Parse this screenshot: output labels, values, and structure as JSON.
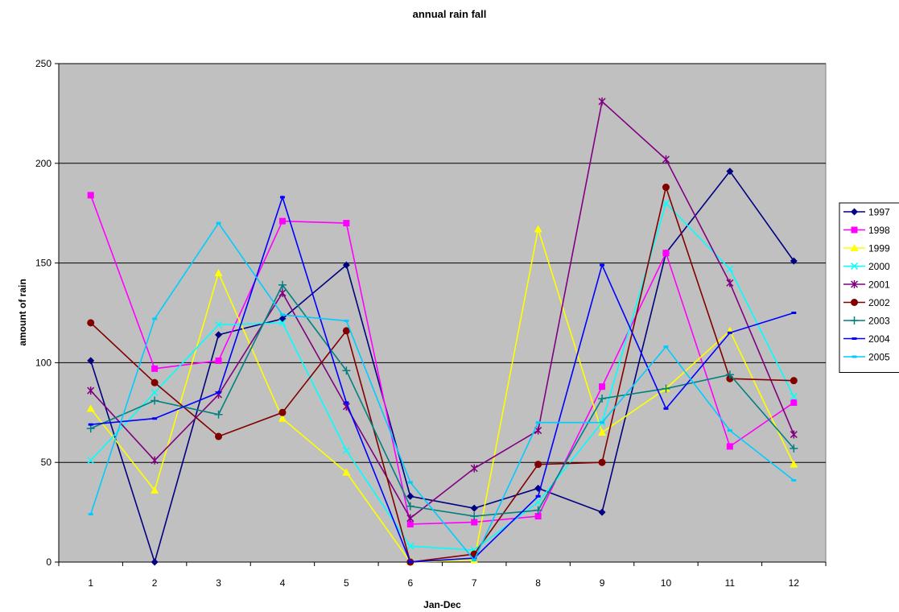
{
  "chart_data": {
    "type": "line",
    "title": "annual rain fall",
    "xlabel": "Jan-Dec",
    "ylabel": "amount of rain",
    "categories": [
      "1",
      "2",
      "3",
      "4",
      "5",
      "6",
      "7",
      "8",
      "9",
      "10",
      "11",
      "12"
    ],
    "ylim": [
      0,
      250
    ],
    "yticks": [
      0,
      50,
      100,
      150,
      200,
      250
    ],
    "grid": "horizontal",
    "plot_background": "#c0c0c0",
    "legend_position": "right",
    "series": [
      {
        "name": "1997",
        "color": "#000080",
        "marker": "diamond",
        "values": [
          101,
          0,
          114,
          122,
          149,
          33,
          27,
          37,
          25,
          155,
          196,
          151
        ]
      },
      {
        "name": "1998",
        "color": "#ff00ff",
        "marker": "square",
        "values": [
          184,
          97,
          101,
          171,
          170,
          19,
          20,
          23,
          88,
          155,
          58,
          80
        ]
      },
      {
        "name": "1999",
        "color": "#ffff00",
        "marker": "triangle",
        "values": [
          77,
          36,
          145,
          72,
          45,
          0,
          1,
          167,
          65,
          87,
          116,
          49
        ]
      },
      {
        "name": "2000",
        "color": "#00ffff",
        "marker": "x",
        "values": [
          51,
          85,
          119,
          120,
          56,
          8,
          6,
          30,
          70,
          180,
          147,
          83
        ]
      },
      {
        "name": "2001",
        "color": "#800080",
        "marker": "asterisk",
        "values": [
          86,
          51,
          84,
          135,
          78,
          22,
          47,
          66,
          231,
          202,
          140,
          64
        ]
      },
      {
        "name": "2002",
        "color": "#800000",
        "marker": "circle",
        "values": [
          120,
          90,
          63,
          75,
          116,
          0,
          4,
          49,
          50,
          188,
          92,
          91
        ]
      },
      {
        "name": "2003",
        "color": "#008080",
        "marker": "plus",
        "values": [
          67,
          81,
          74,
          139,
          96,
          28,
          23,
          26,
          82,
          87,
          94,
          57
        ]
      },
      {
        "name": "2004",
        "color": "#0000ff",
        "marker": "dash",
        "values": [
          69,
          72,
          85,
          183,
          80,
          0,
          2,
          33,
          149,
          77,
          115,
          125
        ]
      },
      {
        "name": "2005",
        "color": "#00ccff",
        "marker": "dash",
        "values": [
          24,
          122,
          170,
          124,
          121,
          40,
          1,
          70,
          70,
          108,
          66,
          41
        ]
      }
    ]
  }
}
